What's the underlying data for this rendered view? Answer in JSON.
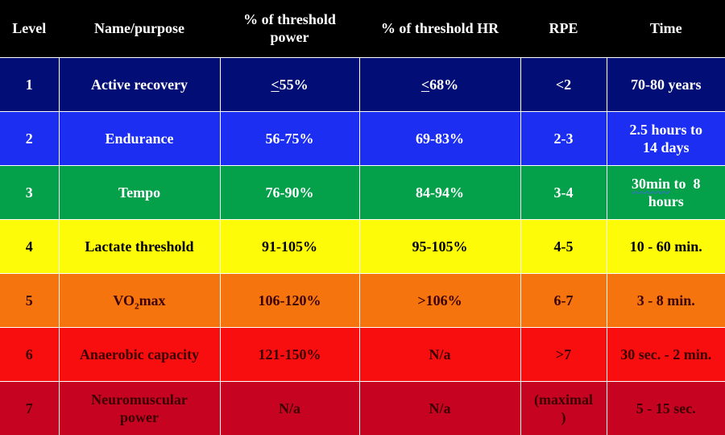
{
  "headers": {
    "level": "Level",
    "name": "Name/purpose",
    "power": "% of threshold power",
    "hr": "% of threshold HR",
    "rpe": "RPE",
    "time": "Time"
  },
  "colors": {
    "header_bg": "#000000",
    "zone1": "#020e75",
    "zone2": "#1b2ef2",
    "zone3": "#04a04a",
    "zone4": "#fdfb07",
    "zone5": "#f5740d",
    "zone6": "#f80e0e",
    "zone7": "#c70322"
  },
  "rows": [
    {
      "level": "1",
      "name": "Active recovery",
      "power_symbol": "<",
      "power": "55%",
      "hr_symbol": "<",
      "hr": "68%",
      "rpe": "<2",
      "time": "70-80 years"
    },
    {
      "level": "2",
      "name": "Endurance",
      "power": "56-75%",
      "hr": "69-83%",
      "rpe": "2-3",
      "time_line1": "2.5 hours to",
      "time_line2": "14 days"
    },
    {
      "level": "3",
      "name": "Tempo",
      "power": "76-90%",
      "hr": "84-94%",
      "rpe": "3-4",
      "time_part1": "30min",
      "time_part2": " to  8",
      "time_line2": "hours"
    },
    {
      "level": "4",
      "name": "Lactate threshold",
      "power": "91-105%",
      "hr": "95-105%",
      "rpe": "4-5",
      "time": "10 - 60 min."
    },
    {
      "level": "5",
      "name_prefix": "VO",
      "name_sub": "2",
      "name_suffix": "max",
      "power": "106-120%",
      "hr": ">106%",
      "rpe": "6-7",
      "time": "3 - 8 min."
    },
    {
      "level": "6",
      "name": "Anaerobic capacity",
      "power": "121-150%",
      "hr": "N/a",
      "rpe": ">7",
      "time": "30 sec. - 2 min."
    },
    {
      "level": "7",
      "name_line1": "Neuromuscular",
      "name_line2": "power",
      "power": "N/a",
      "hr": "N/a",
      "rpe_line1": "(maximal",
      "rpe_line2": ")",
      "time": "5 - 15 sec."
    }
  ]
}
